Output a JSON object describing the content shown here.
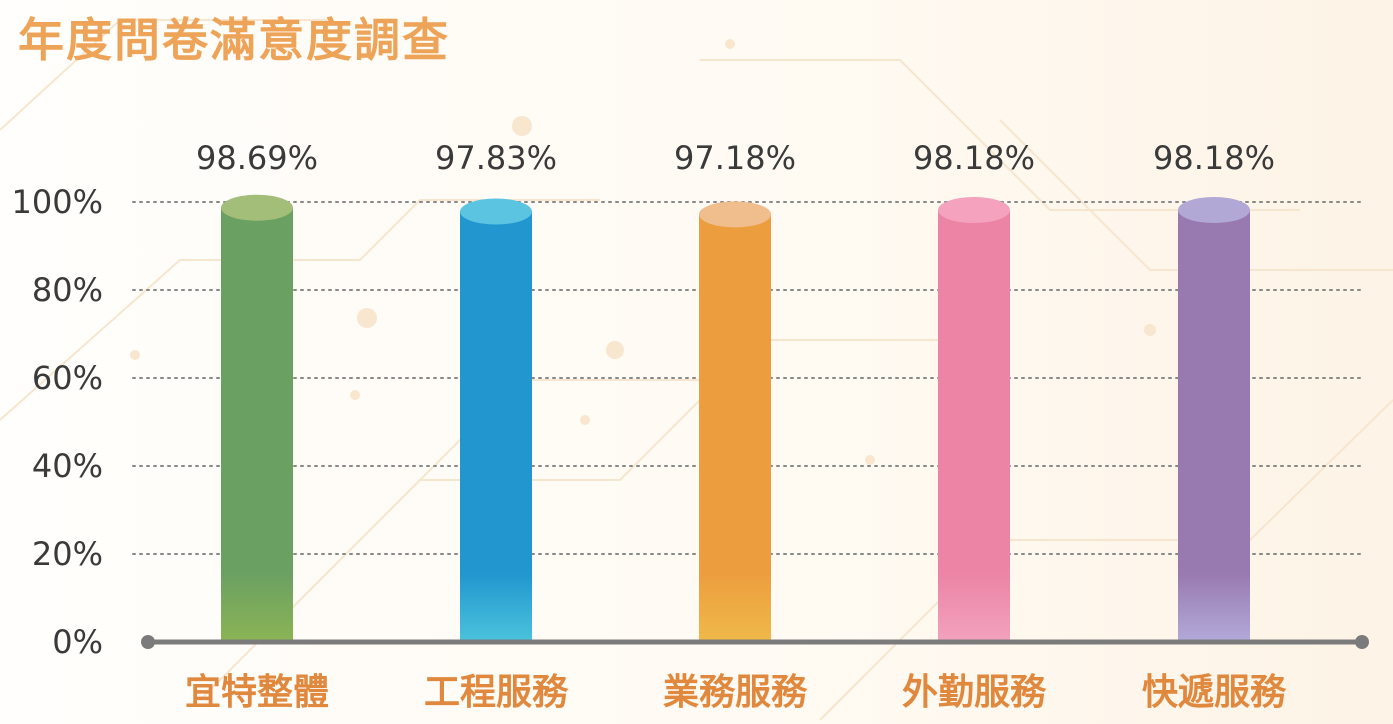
{
  "page": {
    "title": "年度問卷滿意度調查"
  },
  "chart_data": {
    "type": "bar",
    "title": "年度問卷滿意度調查",
    "categories": [
      "宜特整體",
      "工程服務",
      "業務服務",
      "外勤服務",
      "快遞服務"
    ],
    "values": [
      98.69,
      97.83,
      97.18,
      98.18,
      98.18
    ],
    "value_labels": [
      "98.69%",
      "97.83%",
      "97.18%",
      "98.18%",
      "98.18%"
    ],
    "y_ticks": [
      0,
      20,
      40,
      60,
      80,
      100
    ],
    "y_tick_labels": [
      "0%",
      "20%",
      "40%",
      "60%",
      "80%",
      "100%"
    ],
    "ylim": [
      0,
      100
    ],
    "grid": "dotted horizontal",
    "legend": "none",
    "colors": {
      "bars": [
        "#6aa062",
        "#2196cf",
        "#ec9e3e",
        "#ec84a6",
        "#9879b0"
      ],
      "bar_tops": [
        "#a3be78",
        "#5bc4e0",
        "#f0bd8c",
        "#f4a2bd",
        "#b1a8d6"
      ],
      "bar_bottoms": [
        "#8cb455",
        "#4bc3dc",
        "#f0b949",
        "#f2a2bd",
        "#b3aad9"
      ],
      "value_text": "#3a3a3a",
      "category_text": "#e0893e",
      "title": "#eda458",
      "baseline": "#7b7b7b",
      "grid": "#888888"
    }
  }
}
